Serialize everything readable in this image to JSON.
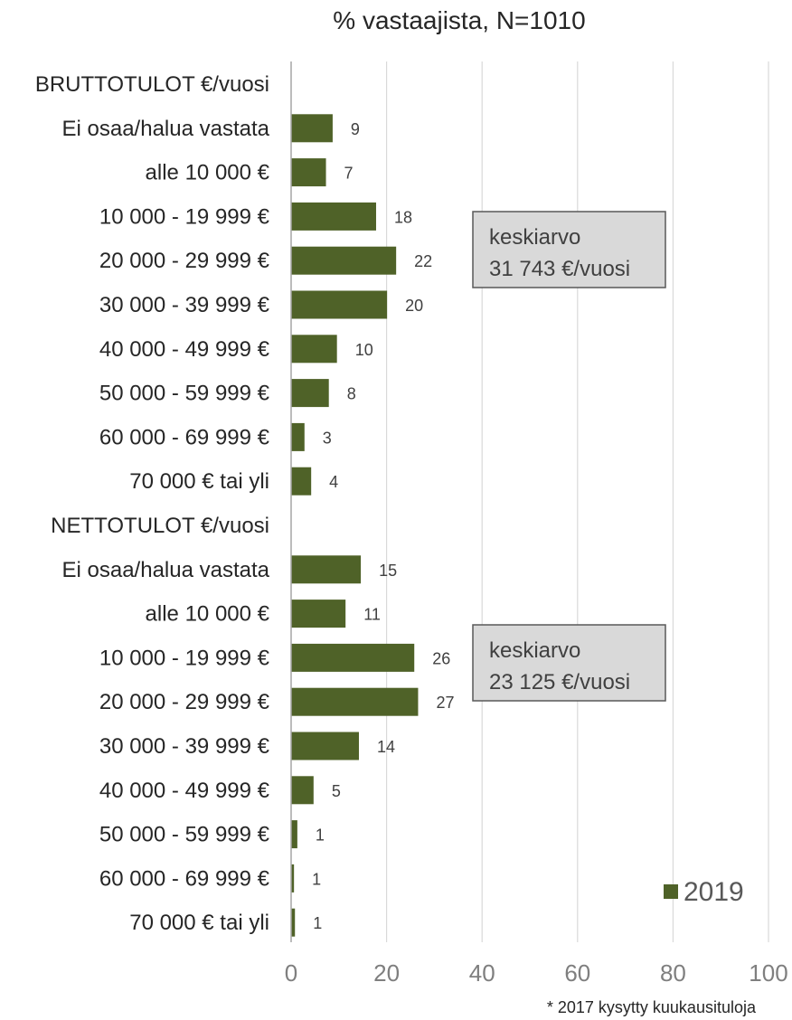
{
  "chart_data": {
    "type": "bar",
    "orientation": "horizontal",
    "title": "% vastaajista, N=1010",
    "categories": [
      "BRUTTOTULOT €/vuosi",
      "Ei osaa/halua vastata",
      "alle 10 000 €",
      "10 000 - 19 999 €",
      "20 000 - 29 999 €",
      "30 000 - 39 999 €",
      "40 000 - 49 999 €",
      "50 000 - 59 999 €",
      "60 000 - 69 999 €",
      "70 000 € tai yli",
      "NETTOTULOT €/vuosi",
      "Ei osaa/halua vastata",
      "alle 10 000 €",
      "10 000 - 19 999 €",
      "20 000 - 29 999 €",
      "30 000 - 39 999 €",
      "40 000 - 49 999 €",
      "50 000 - 59 999 €",
      "60 000 - 69 999 €",
      "70 000 € tai yli"
    ],
    "series": [
      {
        "name": "2019",
        "color": "#4f6228",
        "values": [
          null,
          8.7,
          7.3,
          17.8,
          22.0,
          20.1,
          9.6,
          7.9,
          2.8,
          4.2,
          null,
          14.6,
          11.4,
          25.8,
          26.6,
          14.2,
          4.7,
          1.3,
          0.6,
          0.8
        ],
        "labels": [
          "",
          "9",
          "7",
          "18",
          "22",
          "20",
          "10",
          "8",
          "3",
          "4",
          "",
          "15",
          "11",
          "26",
          "27",
          "14",
          "5",
          "1",
          "1",
          "1"
        ]
      }
    ],
    "xlim": [
      0,
      100
    ],
    "xticks": [
      0,
      20,
      40,
      60,
      80,
      100
    ],
    "xtick_labels": [
      "0",
      "20",
      "40",
      "60",
      "80",
      "100"
    ],
    "grid": true,
    "legend_position": "bottom-right",
    "annotations": [
      {
        "line1": "keskiarvo",
        "line2": "31 743 €/vuosi",
        "group": "BRUTTOTULOT €/vuosi"
      },
      {
        "line1": "keskiarvo",
        "line2": "23 125 €/vuosi",
        "group": "NETTOTULOT €/vuosi"
      }
    ],
    "footnote": "* 2017 kysytty kuukausituloja",
    "colors": {
      "bar": "#4f6228",
      "grid": "#d9d9d9",
      "axis": "#a6a6a6",
      "box_fill": "#d9d9d9",
      "box_border": "#595959"
    }
  }
}
